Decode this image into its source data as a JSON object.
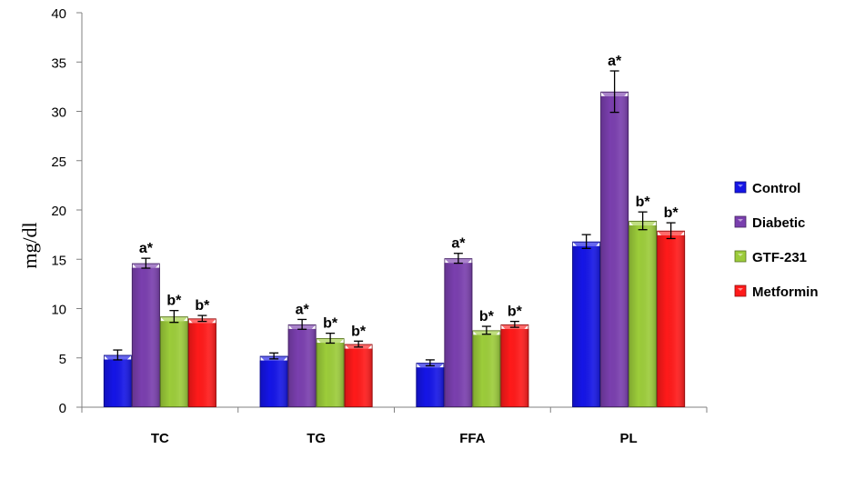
{
  "chart_data": {
    "type": "bar",
    "title": "",
    "xlabel": "",
    "ylabel": "mg/dl",
    "ylim": [
      0,
      40
    ],
    "yticks": [
      "0",
      "5",
      "10",
      "15",
      "20",
      "25",
      "30",
      "35",
      "40"
    ],
    "categories": [
      "TC",
      "TG",
      "FFA",
      "PL"
    ],
    "grid": false,
    "legend_position": "right",
    "series": [
      {
        "name": "Control",
        "color": "#1515e6",
        "values": [
          5.3,
          5.2,
          4.5,
          16.8
        ],
        "errors": [
          0.5,
          0.3,
          0.3,
          0.7
        ],
        "labels": [
          "",
          "",
          "",
          ""
        ]
      },
      {
        "name": "Diabetic",
        "color": "#7a3fae",
        "values": [
          14.6,
          8.4,
          15.1,
          32.0
        ],
        "errors": [
          0.5,
          0.5,
          0.5,
          2.1
        ],
        "labels": [
          "a*",
          "a*",
          "a*",
          "a*"
        ]
      },
      {
        "name": "GTF-231",
        "color": "#9ccc3a",
        "values": [
          9.2,
          7.0,
          7.8,
          18.9
        ],
        "errors": [
          0.6,
          0.5,
          0.4,
          0.9
        ],
        "labels": [
          "b*",
          "b*",
          "b*",
          "b*"
        ]
      },
      {
        "name": "Metformin",
        "color": "#ff1a1a",
        "values": [
          9.0,
          6.4,
          8.4,
          17.9
        ],
        "errors": [
          0.3,
          0.3,
          0.3,
          0.8
        ],
        "labels": [
          "b*",
          "b*",
          "b*",
          "b*"
        ]
      }
    ]
  }
}
